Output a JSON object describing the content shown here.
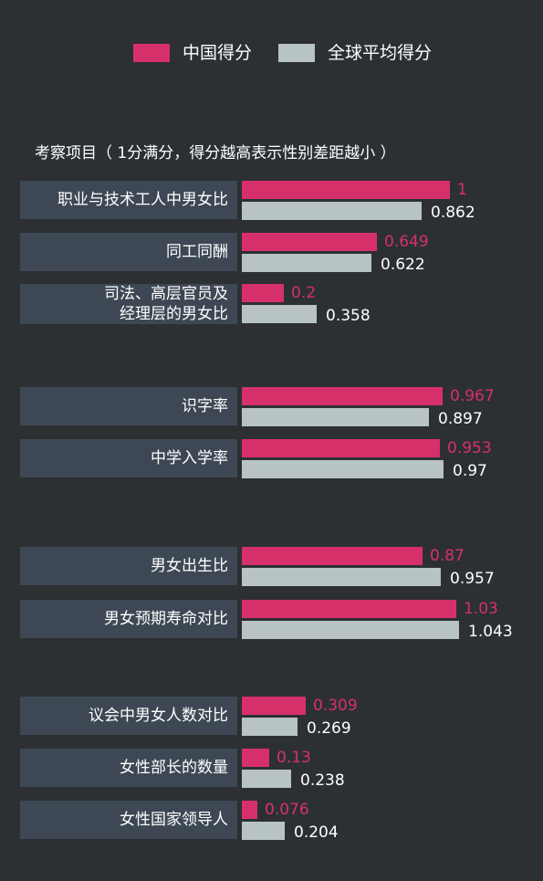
{
  "colors": {
    "china": "#d6306a",
    "global": "#b7c3c5",
    "label_bg": "#3d4854",
    "background": "#2d3033"
  },
  "legend": {
    "china_label": "中国得分",
    "global_label": "全球平均得分",
    "position": "top"
  },
  "chart_data": {
    "type": "bar",
    "orientation": "horizontal",
    "subtitle": "考察项目（ 1分满分，得分越高表示性别差距越小 ）",
    "categories": [
      "职业与技术工人中男女比",
      "同工同酬",
      "司法、高层官员及\n经理层的男女比",
      "识字率",
      "中学入学率",
      "男女出生比",
      "男女预期寿命对比",
      "议会中男女人数对比",
      "女性部长的数量",
      "女性国家领导人"
    ],
    "series": [
      {
        "name": "中国得分",
        "values": [
          1,
          0.649,
          0.2,
          0.967,
          0.953,
          0.87,
          1.03,
          0.309,
          0.13,
          0.076
        ]
      },
      {
        "name": "全球平均得分",
        "values": [
          0.862,
          0.622,
          0.358,
          0.897,
          0.97,
          0.957,
          1.043,
          0.269,
          0.238,
          0.204
        ]
      }
    ],
    "value_labels": {
      "china": [
        "1",
        "0.649",
        "0.2",
        "0.967",
        "0.953",
        "0.87",
        "1.03",
        "0.309",
        "0.13",
        "0.076"
      ],
      "global": [
        "0.862",
        "0.622",
        "0.358",
        "0.897",
        "0.97",
        "0.957",
        "1.043",
        "0.269",
        "0.238",
        "0.204"
      ]
    },
    "xlim": [
      0,
      1.043
    ],
    "grid": false,
    "axes_visible": false
  }
}
